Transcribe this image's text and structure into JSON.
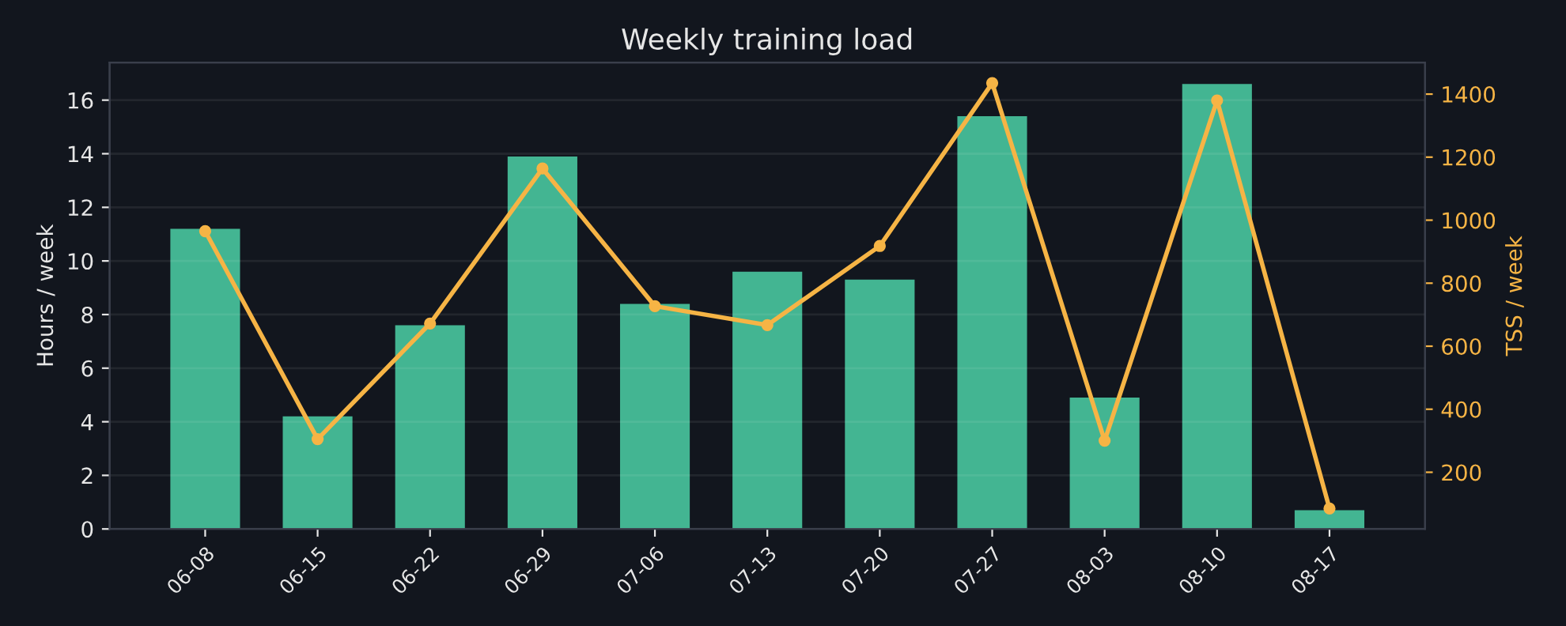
{
  "chart_data": {
    "type": "bar",
    "title": "Weekly training load",
    "ylabel": "Hours / week",
    "y2label": "TSS / week",
    "categories": [
      "06-08",
      "06-15",
      "06-22",
      "06-29",
      "07-06",
      "07-13",
      "07-20",
      "07-27",
      "08-03",
      "08-10",
      "08-17"
    ],
    "series": [
      {
        "color": "#43b592",
        "values": [
          11.2,
          4.2,
          7.6,
          13.9,
          8.4,
          9.6,
          9.3,
          15.4,
          4.9,
          16.6,
          0.7
        ]
      },
      {
        "type": "line",
        "axis": "y2",
        "color": "#f6b445",
        "marker": "circle",
        "values": [
          965,
          305,
          672,
          1164,
          727,
          667,
          918,
          1435,
          300,
          1380,
          85
        ]
      }
    ],
    "ylim": [
      0,
      17.4
    ],
    "yticks": [
      0,
      2,
      4,
      6,
      8,
      10,
      12,
      14,
      16
    ],
    "y2lim": [
      20,
      1500
    ],
    "y2ticks": [
      200,
      400,
      600,
      800,
      1000,
      1200,
      1400
    ],
    "grid": "y"
  }
}
